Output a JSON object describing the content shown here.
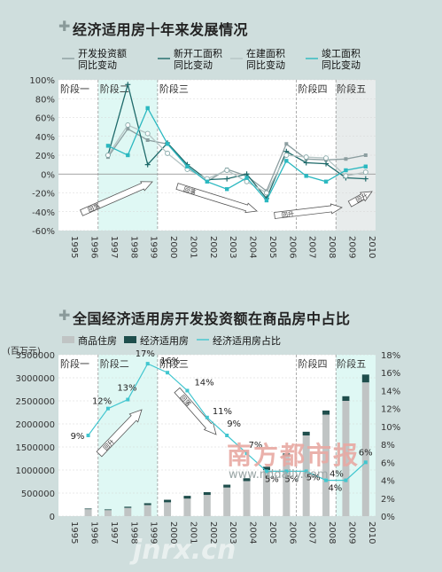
{
  "chart1": {
    "title": "经济适用房十年来发展情况",
    "legend": [
      "开发投资额同比变动",
      "新开工面积同比变动",
      "在建面积同比变动",
      "竣工面积同比变动"
    ],
    "phases": [
      "阶段一",
      "阶段二",
      "阶段三",
      "阶段四",
      "阶段五"
    ],
    "arrows": [
      "回落",
      "回落",
      "回升",
      "回升"
    ]
  },
  "chart2": {
    "title": "全国经济适用房开发投资额在商品房中占比",
    "unit": "(百万元)",
    "legend": [
      "商品住房",
      "经济适用房",
      "经济适用房占比"
    ],
    "phases": [
      "阶段一",
      "阶段二",
      "阶段三",
      "阶段四",
      "阶段五"
    ],
    "arrows": [
      "回升",
      "回落"
    ]
  },
  "watermark": {
    "brand": "南方都市报",
    "site": "www.nddaily.com",
    "corner": "jnrx.cn"
  },
  "colors": {
    "investment": "#8c9ea0",
    "new_start": "#1e6a6a",
    "under_construction": "#b5c4c4",
    "completed": "#2bb8c0",
    "commercial_bar": "#c0c4c4",
    "affordable_bar": "#1f4e4c",
    "share_line": "#41c6cf",
    "phase_band": "#dff8f4"
  },
  "chart_data": [
    {
      "type": "line",
      "title": "经济适用房十年来发展情况",
      "x": [
        "1995",
        "1996",
        "1997",
        "1998",
        "1999",
        "2000",
        "2001",
        "2002",
        "2003",
        "2004",
        "2005",
        "2006",
        "2007",
        "2008",
        "2009",
        "2010"
      ],
      "ylim": [
        -60,
        100
      ],
      "yticks": [
        "100%",
        "80%",
        "60%",
        "40%",
        "20%",
        "0%",
        "-20%",
        "-40%",
        "-60%"
      ],
      "series": [
        {
          "name": "开发投资额同比变动",
          "values": [
            null,
            null,
            18,
            48,
            36,
            32,
            8,
            -8,
            5,
            -2,
            -18,
            32,
            16,
            15,
            16,
            20
          ]
        },
        {
          "name": "新开工面积同比变动",
          "values": [
            null,
            null,
            20,
            95,
            10,
            33,
            10,
            -6,
            -5,
            0,
            -26,
            24,
            12,
            11,
            -4,
            -5
          ]
        },
        {
          "name": "在建面积同比变动",
          "values": [
            null,
            null,
            20,
            52,
            43,
            22,
            5,
            -5,
            4,
            -8,
            -20,
            20,
            18,
            17,
            -2,
            2
          ]
        },
        {
          "name": "竣工面积同比变动",
          "values": [
            null,
            null,
            30,
            20,
            70,
            32,
            8,
            -8,
            -16,
            -4,
            -28,
            14,
            -2,
            -8,
            4,
            8
          ]
        }
      ]
    },
    {
      "type": "bar",
      "title": "全国经济适用房开发投资额在商品房中占比",
      "x": [
        "1995",
        "1996",
        "1997",
        "1998",
        "1999",
        "2000",
        "2001",
        "2002",
        "2003",
        "2004",
        "2005",
        "2006",
        "2007",
        "2008",
        "2009",
        "2010"
      ],
      "ylim": [
        0,
        3500000
      ],
      "yticks": [
        "3500000",
        "3000000",
        "2500000",
        "2000000",
        "1500000",
        "1000000",
        "500000",
        "0"
      ],
      "y2lim": [
        0,
        18
      ],
      "y2ticks": [
        "18%",
        "16%",
        "14%",
        "12%",
        "10%",
        "8%",
        "6%",
        "4%",
        "2%",
        "0%"
      ],
      "series": [
        {
          "name": "商品住房",
          "values": [
            0,
            150000,
            130000,
            180000,
            240000,
            300000,
            380000,
            460000,
            620000,
            760000,
            1000000,
            1300000,
            1750000,
            2200000,
            2500000,
            2900000
          ]
        },
        {
          "name": "经济适用房",
          "values": [
            0,
            15000,
            16000,
            24000,
            40000,
            55000,
            60000,
            60000,
            62000,
            62000,
            70000,
            60000,
            80000,
            90000,
            100000,
            170000
          ]
        },
        {
          "name": "经济适用房占比",
          "values": [
            null,
            9,
            12,
            13,
            17,
            16,
            14,
            11,
            9,
            7,
            5,
            5,
            5,
            4,
            4,
            6
          ]
        }
      ],
      "share_labels": [
        "9%",
        "12%",
        "13%",
        "17%",
        "16%",
        "14%",
        "11%",
        "9%",
        "7%",
        "5%",
        "5%",
        "5%",
        "4%",
        "4%",
        "6%"
      ]
    }
  ]
}
